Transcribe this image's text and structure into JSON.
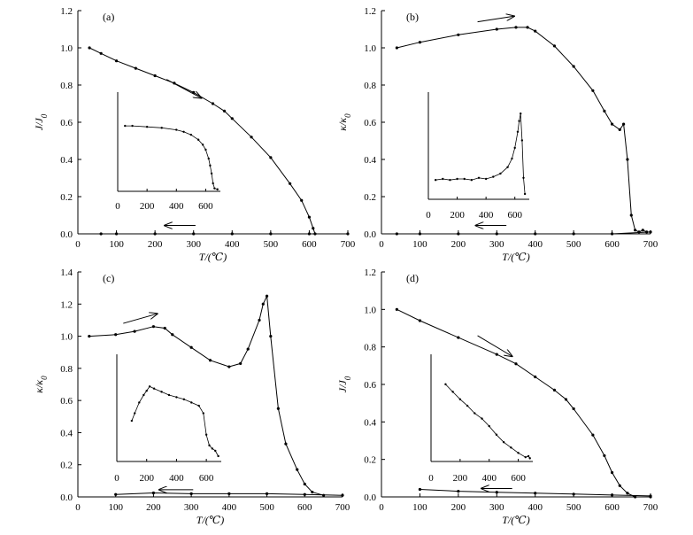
{
  "figure": {
    "panels": [
      "a",
      "b",
      "c",
      "d"
    ]
  },
  "chart_data": [
    {
      "id": "a",
      "type": "line",
      "label": "(a)",
      "ylabel": "J/J",
      "ylabel_sub": "0",
      "xlabel": "T/(℃)",
      "xlim": [
        0,
        700
      ],
      "ylim": [
        0,
        1.2
      ],
      "xticks": [
        "0",
        "100",
        "200",
        "300",
        "400",
        "500",
        "600",
        "700"
      ],
      "yticks": [
        "0.0",
        "0.2",
        "0.4",
        "0.6",
        "0.8",
        "1.0",
        "1.2"
      ],
      "arrows": [
        {
          "dir": "right",
          "x1": 230,
          "y1": 0.83,
          "x2": 320,
          "y2": 0.73
        },
        {
          "dir": "left",
          "x1": 305,
          "y1": 0.045,
          "x2": 225,
          "y2": 0.045
        }
      ],
      "series": [
        {
          "name": "heating",
          "markers": true,
          "x": [
            30,
            60,
            100,
            150,
            200,
            250,
            300,
            350,
            380,
            400,
            450,
            500,
            550,
            580,
            600,
            610,
            615
          ],
          "y": [
            1.0,
            0.97,
            0.93,
            0.89,
            0.85,
            0.81,
            0.76,
            0.7,
            0.66,
            0.62,
            0.52,
            0.41,
            0.27,
            0.18,
            0.09,
            0.03,
            0.0
          ]
        },
        {
          "name": "cooling",
          "markers": true,
          "x": [
            60,
            100,
            200,
            300,
            400,
            500,
            600,
            700
          ],
          "y": [
            0.0,
            0.0,
            0.0,
            0.0,
            0.0,
            0.0,
            0.0,
            0.0
          ]
        }
      ],
      "inset": {
        "xlim": [
          0,
          700
        ],
        "xticks": [
          "0",
          "200",
          "400",
          "600"
        ],
        "ylim": [
          0,
          1.0
        ],
        "series": [
          {
            "name": "inset",
            "markers": true,
            "x": [
              50,
              100,
              200,
              300,
              400,
              450,
              500,
              550,
              580,
              600,
              620,
              630,
              640,
              650,
              660,
              680
            ],
            "y": [
              0.66,
              0.66,
              0.65,
              0.64,
              0.62,
              0.6,
              0.57,
              0.52,
              0.47,
              0.42,
              0.33,
              0.26,
              0.18,
              0.08,
              0.03,
              0.02
            ]
          }
        ]
      }
    },
    {
      "id": "b",
      "type": "line",
      "label": "(b)",
      "ylabel": "κ/κ",
      "ylabel_sub": "0",
      "xlabel": "T/(℃)",
      "xlim": [
        0,
        700
      ],
      "ylim": [
        0,
        1.2
      ],
      "xticks": [
        "0",
        "100",
        "200",
        "300",
        "400",
        "500",
        "600",
        "700"
      ],
      "yticks": [
        "0.0",
        "0.2",
        "0.4",
        "0.6",
        "0.8",
        "1.0",
        "1.2"
      ],
      "arrows": [
        {
          "dir": "right",
          "x1": 250,
          "y1": 1.14,
          "x2": 345,
          "y2": 1.17
        },
        {
          "dir": "left",
          "x1": 325,
          "y1": 0.045,
          "x2": 245,
          "y2": 0.045
        }
      ],
      "series": [
        {
          "name": "heating",
          "markers": true,
          "x": [
            40,
            100,
            200,
            300,
            350,
            380,
            400,
            450,
            500,
            550,
            580,
            600,
            620,
            630,
            640,
            650,
            660,
            670,
            680,
            690
          ],
          "y": [
            1.0,
            1.03,
            1.07,
            1.1,
            1.11,
            1.11,
            1.09,
            1.01,
            0.9,
            0.77,
            0.66,
            0.59,
            0.56,
            0.59,
            0.4,
            0.1,
            0.02,
            0.01,
            0.02,
            0.01
          ]
        },
        {
          "name": "cooling",
          "markers": true,
          "x": [
            40,
            100,
            200,
            300,
            400,
            500,
            600,
            700
          ],
          "y": [
            0.0,
            0.0,
            0.0,
            0.0,
            0.0,
            0.0,
            0.0,
            0.01
          ]
        }
      ],
      "inset": {
        "xlim": [
          0,
          700
        ],
        "xticks": [
          "0",
          "200",
          "400",
          "600"
        ],
        "ylim": [
          0,
          1.0
        ],
        "series": [
          {
            "name": "inset",
            "markers": true,
            "x": [
              50,
              100,
              150,
              200,
              250,
              300,
              350,
              400,
              450,
              500,
              550,
              580,
              600,
              620,
              630,
              640,
              650,
              660,
              670
            ],
            "y": [
              0.18,
              0.19,
              0.18,
              0.19,
              0.19,
              0.18,
              0.2,
              0.19,
              0.21,
              0.24,
              0.3,
              0.38,
              0.48,
              0.63,
              0.73,
              0.8,
              0.55,
              0.2,
              0.05
            ]
          }
        ]
      }
    },
    {
      "id": "c",
      "type": "line",
      "label": "(c)",
      "ylabel": "κ/κ",
      "ylabel_sub": "0",
      "xlabel": "T/(℃)",
      "xlim": [
        0,
        700
      ],
      "ylim": [
        0,
        1.4
      ],
      "xticks": [
        "0",
        "100",
        "200",
        "300",
        "400",
        "500",
        "600",
        "700"
      ],
      "yticks": [
        "0.0",
        "0.2",
        "0.4",
        "0.6",
        "0.8",
        "1.0",
        "1.2",
        "1.4"
      ],
      "arrows": [
        {
          "dir": "right",
          "x1": 120,
          "y1": 1.08,
          "x2": 210,
          "y2": 1.14
        },
        {
          "dir": "left",
          "x1": 305,
          "y1": 0.045,
          "x2": 215,
          "y2": 0.045
        }
      ],
      "series": [
        {
          "name": "heating",
          "markers": true,
          "x": [
            30,
            100,
            150,
            200,
            230,
            250,
            300,
            350,
            400,
            430,
            450,
            480,
            490,
            500,
            510,
            530,
            550,
            580,
            600,
            620,
            650
          ],
          "y": [
            1.0,
            1.01,
            1.03,
            1.06,
            1.05,
            1.01,
            0.93,
            0.85,
            0.81,
            0.83,
            0.92,
            1.1,
            1.2,
            1.25,
            1.0,
            0.55,
            0.33,
            0.17,
            0.08,
            0.03,
            0.01
          ]
        },
        {
          "name": "cooling",
          "markers": true,
          "x": [
            100,
            200,
            300,
            400,
            500,
            600,
            700
          ],
          "y": [
            0.015,
            0.025,
            0.02,
            0.02,
            0.02,
            0.015,
            0.01
          ]
        }
      ],
      "inset": {
        "xlim": [
          0,
          700
        ],
        "xticks": [
          "0",
          "200",
          "400",
          "600"
        ],
        "ylim": [
          0,
          1.0
        ],
        "series": [
          {
            "name": "inset",
            "markers": true,
            "x": [
              100,
              120,
              150,
              180,
              200,
              220,
              250,
              300,
              350,
              400,
              450,
              500,
              550,
              580,
              600,
              620,
              640,
              660,
              680
            ],
            "y": [
              0.38,
              0.45,
              0.55,
              0.62,
              0.66,
              0.7,
              0.68,
              0.65,
              0.62,
              0.6,
              0.58,
              0.55,
              0.52,
              0.45,
              0.25,
              0.15,
              0.12,
              0.1,
              0.05
            ]
          }
        ]
      }
    },
    {
      "id": "d",
      "type": "line",
      "label": "(d)",
      "ylabel": "J/J",
      "ylabel_sub": "0",
      "xlabel": "T/(℃)",
      "xlim": [
        0,
        700
      ],
      "ylim": [
        0,
        1.2
      ],
      "xticks": [
        "0",
        "100",
        "200",
        "300",
        "400",
        "500",
        "600",
        "700"
      ],
      "yticks": [
        "0.0",
        "0.2",
        "0.4",
        "0.6",
        "0.8",
        "1.0",
        "1.2"
      ],
      "arrows": [
        {
          "dir": "right",
          "x1": 250,
          "y1": 0.86,
          "x2": 340,
          "y2": 0.75
        },
        {
          "dir": "left",
          "x1": 340,
          "y1": 0.045,
          "x2": 260,
          "y2": 0.045
        }
      ],
      "series": [
        {
          "name": "heating",
          "markers": true,
          "x": [
            40,
            100,
            200,
            300,
            350,
            400,
            450,
            480,
            500,
            550,
            580,
            600,
            620,
            640,
            660,
            700
          ],
          "y": [
            1.0,
            0.94,
            0.85,
            0.76,
            0.71,
            0.64,
            0.57,
            0.52,
            0.47,
            0.33,
            0.22,
            0.13,
            0.06,
            0.02,
            0.0,
            0.0
          ]
        },
        {
          "name": "cooling",
          "markers": true,
          "x": [
            100,
            200,
            300,
            400,
            500,
            600,
            700
          ],
          "y": [
            0.04,
            0.03,
            0.025,
            0.02,
            0.015,
            0.01,
            0.005
          ]
        }
      ],
      "inset": {
        "xlim": [
          0,
          700
        ],
        "xticks": [
          "0",
          "200",
          "400",
          "600"
        ],
        "ylim": [
          0,
          1.0
        ],
        "series": [
          {
            "name": "inset",
            "markers": true,
            "x": [
              100,
              150,
              200,
              250,
              300,
              350,
              400,
              450,
              500,
              550,
              600,
              650,
              670,
              680
            ],
            "y": [
              0.72,
              0.65,
              0.58,
              0.52,
              0.45,
              0.4,
              0.33,
              0.25,
              0.18,
              0.13,
              0.08,
              0.04,
              0.05,
              0.03
            ]
          }
        ]
      }
    }
  ]
}
